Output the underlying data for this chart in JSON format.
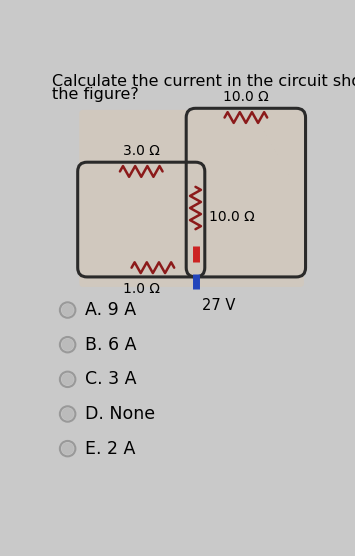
{
  "title_line1": "Calculate the current in the circuit shown in",
  "title_line2": "the figure?",
  "title_fontsize": 11.5,
  "bg_color": "#c9c9c9",
  "circuit_area_color": "#d0c8be",
  "wire_color": "#2a2a2a",
  "resistor_color": "#8B1a1a",
  "battery_pos_color": "#cc2222",
  "battery_neg_color": "#2244bb",
  "labels": {
    "R_top_left": "10.0 Ω",
    "R_top_left_label_above": true,
    "R_middle": "10.0 Ω",
    "R_outer_top": "3.0 Ω",
    "R_bottom": "1.0 Ω",
    "V": "27 V"
  },
  "choices": [
    "A. 9 A",
    "B. 6 A",
    "C. 3 A",
    "D. None",
    "E. 2 A"
  ],
  "choice_fontsize": 12.5,
  "radio_color": "#999999",
  "radio_fill": "#bbbbbb"
}
